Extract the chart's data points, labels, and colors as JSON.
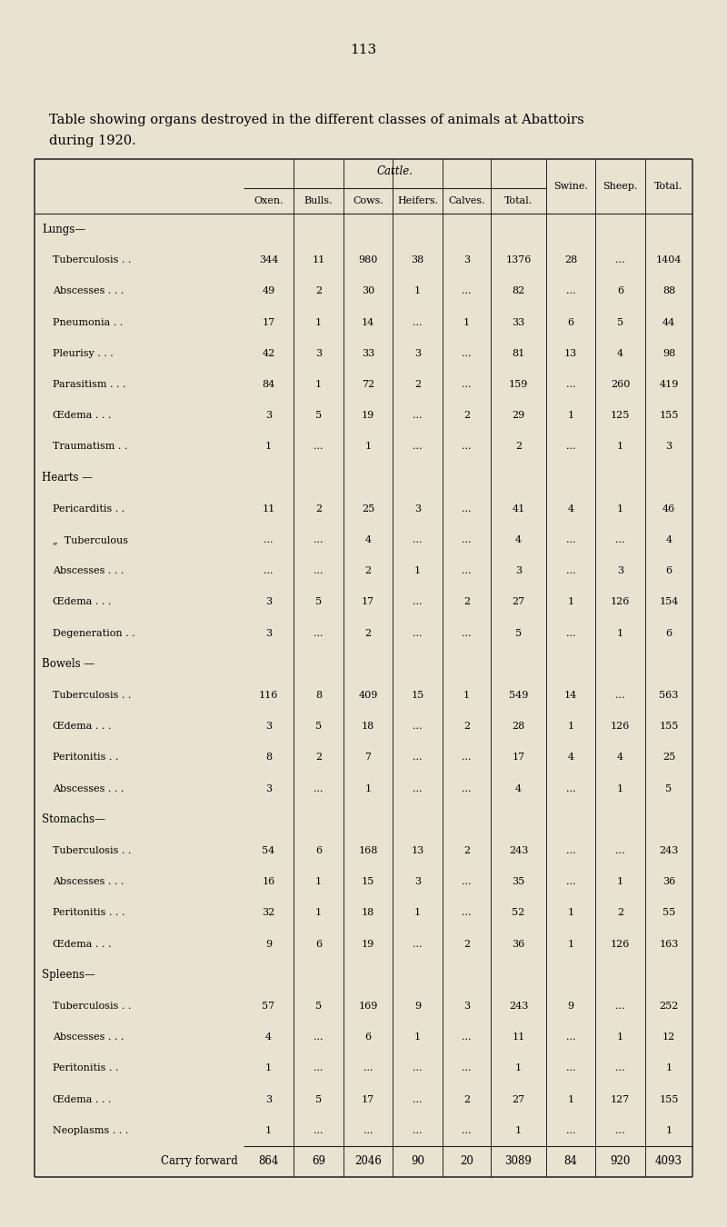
{
  "page_number": "113",
  "title_line1": "Table showing organs destroyed in the different classes of animals at Abattoirs",
  "title_line2": "during 1920.",
  "bg_color": "#e8e2d0",
  "header_cattle": "Cattle.",
  "col_headers": [
    "Oxen.",
    "Bulls.",
    "Cows.",
    "Heifers.",
    "Calves.",
    "Total.",
    "Swine.",
    "Sheep.",
    "Total."
  ],
  "sections": [
    {
      "section_label": "Lungs—",
      "rows": [
        {
          "label": "Tuberculosis . .",
          "indent": true,
          "values": [
            "344",
            "11",
            "980",
            "38",
            "3",
            "1376",
            "28",
            "...",
            "1404"
          ]
        },
        {
          "label": "Abscesses . . .",
          "indent": true,
          "values": [
            "49",
            "2",
            "30",
            "1",
            "...",
            "82",
            "...",
            "6",
            "88"
          ]
        },
        {
          "label": "Pneumonia . .",
          "indent": true,
          "values": [
            "17",
            "1",
            "14",
            "...",
            "1",
            "33",
            "6",
            "5",
            "44"
          ]
        },
        {
          "label": "Pleurisy . . .",
          "indent": true,
          "values": [
            "42",
            "3",
            "33",
            "3",
            "...",
            "81",
            "13",
            "4",
            "98"
          ]
        },
        {
          "label": "Parasitism . . .",
          "indent": true,
          "values": [
            "84",
            "1",
            "72",
            "2",
            "...",
            "159",
            "...",
            "260",
            "419"
          ]
        },
        {
          "label": "Œdema . . .",
          "indent": true,
          "values": [
            "3",
            "5",
            "19",
            "...",
            "2",
            "29",
            "1",
            "125",
            "155"
          ]
        },
        {
          "label": "Traumatism . .",
          "indent": true,
          "values": [
            "1",
            "...",
            "1",
            "...",
            "...",
            "2",
            "...",
            "1",
            "3"
          ]
        }
      ]
    },
    {
      "section_label": "Hearts —",
      "rows": [
        {
          "label": "Pericarditis . .",
          "indent": true,
          "values": [
            "11",
            "2",
            "25",
            "3",
            "...",
            "41",
            "4",
            "1",
            "46"
          ]
        },
        {
          "label": "„  Tuberculous",
          "indent": true,
          "values": [
            "...",
            "...",
            "4",
            "...",
            "...",
            "4",
            "...",
            "...",
            "4"
          ]
        },
        {
          "label": "Abscesses . . .",
          "indent": true,
          "values": [
            "...",
            "...",
            "2",
            "1",
            "...",
            "3",
            "...",
            "3",
            "6"
          ]
        },
        {
          "label": "Œdema . . .",
          "indent": true,
          "values": [
            "3",
            "5",
            "17",
            "...",
            "2",
            "27",
            "1",
            "126",
            "154"
          ]
        },
        {
          "label": "Degeneration . .",
          "indent": true,
          "values": [
            "3",
            "...",
            "2",
            "...",
            "...",
            "5",
            "...",
            "1",
            "6"
          ]
        }
      ]
    },
    {
      "section_label": "Bowels —",
      "rows": [
        {
          "label": "Tuberculosis . .",
          "indent": true,
          "values": [
            "116",
            "8",
            "409",
            "15",
            "1",
            "549",
            "14",
            "...",
            "563"
          ]
        },
        {
          "label": "Œdema . . .",
          "indent": true,
          "values": [
            "3",
            "5",
            "18",
            "...",
            "2",
            "28",
            "1",
            "126",
            "155"
          ]
        },
        {
          "label": "Peritonitis . .",
          "indent": true,
          "values": [
            "8",
            "2",
            "7",
            "...",
            "...",
            "17",
            "4",
            "4",
            "25"
          ]
        },
        {
          "label": "Abscesses . . .",
          "indent": true,
          "values": [
            "3",
            "...",
            "1",
            "...",
            "...",
            "4",
            "...",
            "1",
            "5"
          ]
        }
      ]
    },
    {
      "section_label": "Stomachs—",
      "rows": [
        {
          "label": "Tuberculosis . .",
          "indent": true,
          "values": [
            "54",
            "6",
            "168",
            "13",
            "2",
            "243",
            "...",
            "...",
            "243"
          ]
        },
        {
          "label": "Abscesses . . .",
          "indent": true,
          "values": [
            "16",
            "1",
            "15",
            "3",
            "...",
            "35",
            "...",
            "1",
            "36"
          ]
        },
        {
          "label": "Peritonitis . . .",
          "indent": true,
          "values": [
            "32",
            "1",
            "18",
            "1",
            "...",
            "52",
            "1",
            "2",
            "55"
          ]
        },
        {
          "label": "Œdema . . .",
          "indent": true,
          "values": [
            "9",
            "6",
            "19",
            "...",
            "2",
            "36",
            "1",
            "126",
            "163"
          ]
        }
      ]
    },
    {
      "section_label": "Spleens—",
      "rows": [
        {
          "label": "Tuberculosis . .",
          "indent": true,
          "values": [
            "57",
            "5",
            "169",
            "9",
            "3",
            "243",
            "9",
            "...",
            "252"
          ]
        },
        {
          "label": "Abscesses . . .",
          "indent": true,
          "values": [
            "4",
            "...",
            "6",
            "1",
            "...",
            "11",
            "...",
            "1",
            "12"
          ]
        },
        {
          "label": "Peritonitis . .",
          "indent": true,
          "values": [
            "1",
            "...",
            "...",
            "...",
            "...",
            "1",
            "...",
            "...",
            "1"
          ]
        },
        {
          "label": "Œdema . . .",
          "indent": true,
          "values": [
            "3",
            "5",
            "17",
            "...",
            "2",
            "27",
            "1",
            "127",
            "155"
          ]
        },
        {
          "label": "Neoplasms . . .",
          "indent": true,
          "values": [
            "1",
            "...",
            "...",
            "...",
            "...",
            "1",
            "...",
            "...",
            "1"
          ]
        }
      ]
    }
  ],
  "footer_row": {
    "label": "Carry forward",
    "values": [
      "864",
      "69",
      "2046",
      "90",
      "20",
      "3089",
      "84",
      "920",
      "4093"
    ]
  }
}
